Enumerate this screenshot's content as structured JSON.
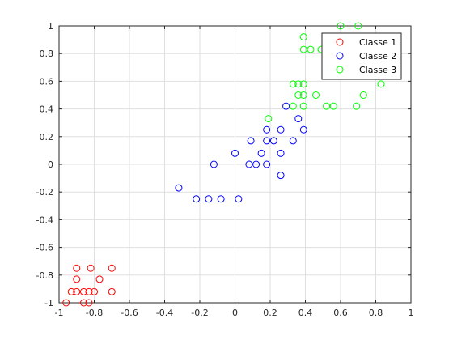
{
  "chart_data": {
    "type": "scatter",
    "title": "",
    "xlabel": "",
    "ylabel": "",
    "xlim": [
      -1,
      1
    ],
    "ylim": [
      -1,
      1
    ],
    "grid": true,
    "legend_position": "top-right",
    "x_ticks": [
      -1,
      -0.8,
      -0.6,
      -0.4,
      -0.2,
      0,
      0.2,
      0.4,
      0.6,
      0.8,
      1
    ],
    "x_tick_labels": [
      "-1",
      "-0.8",
      "-0.6",
      "-0.4",
      "-0.2",
      "0",
      "0.2",
      "0.4",
      "0.6",
      "0.8",
      "1"
    ],
    "y_ticks": [
      -1,
      -0.8,
      -0.6,
      -0.4,
      -0.2,
      0,
      0.2,
      0.4,
      0.6,
      0.8,
      1
    ],
    "y_tick_labels": [
      "-1",
      "-0.8",
      "-0.6",
      "-0.4",
      "-0.2",
      "0",
      "0.2",
      "0.4",
      "0.6",
      "0.8",
      "1"
    ],
    "series": [
      {
        "name": "Classe 1",
        "color": "#ff0000",
        "points": [
          [
            -0.96,
            -1.0
          ],
          [
            -0.9,
            -0.75
          ],
          [
            -0.82,
            -0.75
          ],
          [
            -0.7,
            -0.75
          ],
          [
            -0.9,
            -0.83
          ],
          [
            -0.77,
            -0.83
          ],
          [
            -0.93,
            -0.92
          ],
          [
            -0.9,
            -0.92
          ],
          [
            -0.86,
            -0.92
          ],
          [
            -0.83,
            -0.92
          ],
          [
            -0.8,
            -0.92
          ],
          [
            -0.7,
            -0.92
          ],
          [
            -0.86,
            -1.0
          ],
          [
            -0.83,
            -1.0
          ]
        ]
      },
      {
        "name": "Classe 2",
        "color": "#0000ff",
        "points": [
          [
            -0.32,
            -0.17
          ],
          [
            -0.22,
            -0.25
          ],
          [
            -0.15,
            -0.25
          ],
          [
            -0.08,
            -0.25
          ],
          [
            0.02,
            -0.25
          ],
          [
            -0.12,
            0.0
          ],
          [
            0.08,
            0.0
          ],
          [
            0.12,
            0.0
          ],
          [
            0.18,
            0.0
          ],
          [
            0.26,
            -0.08
          ],
          [
            0.0,
            0.08
          ],
          [
            0.15,
            0.08
          ],
          [
            0.26,
            0.08
          ],
          [
            0.09,
            0.17
          ],
          [
            0.18,
            0.17
          ],
          [
            0.22,
            0.17
          ],
          [
            0.33,
            0.17
          ],
          [
            0.18,
            0.25
          ],
          [
            0.26,
            0.25
          ],
          [
            0.39,
            0.25
          ],
          [
            0.36,
            0.33
          ],
          [
            0.29,
            0.42
          ]
        ]
      },
      {
        "name": "Classe 3",
        "color": "#00ff00",
        "points": [
          [
            0.6,
            1.0
          ],
          [
            0.7,
            1.0
          ],
          [
            0.39,
            0.92
          ],
          [
            0.39,
            0.83
          ],
          [
            0.43,
            0.83
          ],
          [
            0.49,
            0.83
          ],
          [
            0.33,
            0.58
          ],
          [
            0.36,
            0.58
          ],
          [
            0.39,
            0.58
          ],
          [
            0.83,
            0.58
          ],
          [
            0.36,
            0.5
          ],
          [
            0.39,
            0.5
          ],
          [
            0.46,
            0.5
          ],
          [
            0.73,
            0.5
          ],
          [
            0.33,
            0.42
          ],
          [
            0.39,
            0.42
          ],
          [
            0.52,
            0.42
          ],
          [
            0.56,
            0.42
          ],
          [
            0.69,
            0.42
          ],
          [
            0.19,
            0.33
          ]
        ]
      }
    ]
  }
}
